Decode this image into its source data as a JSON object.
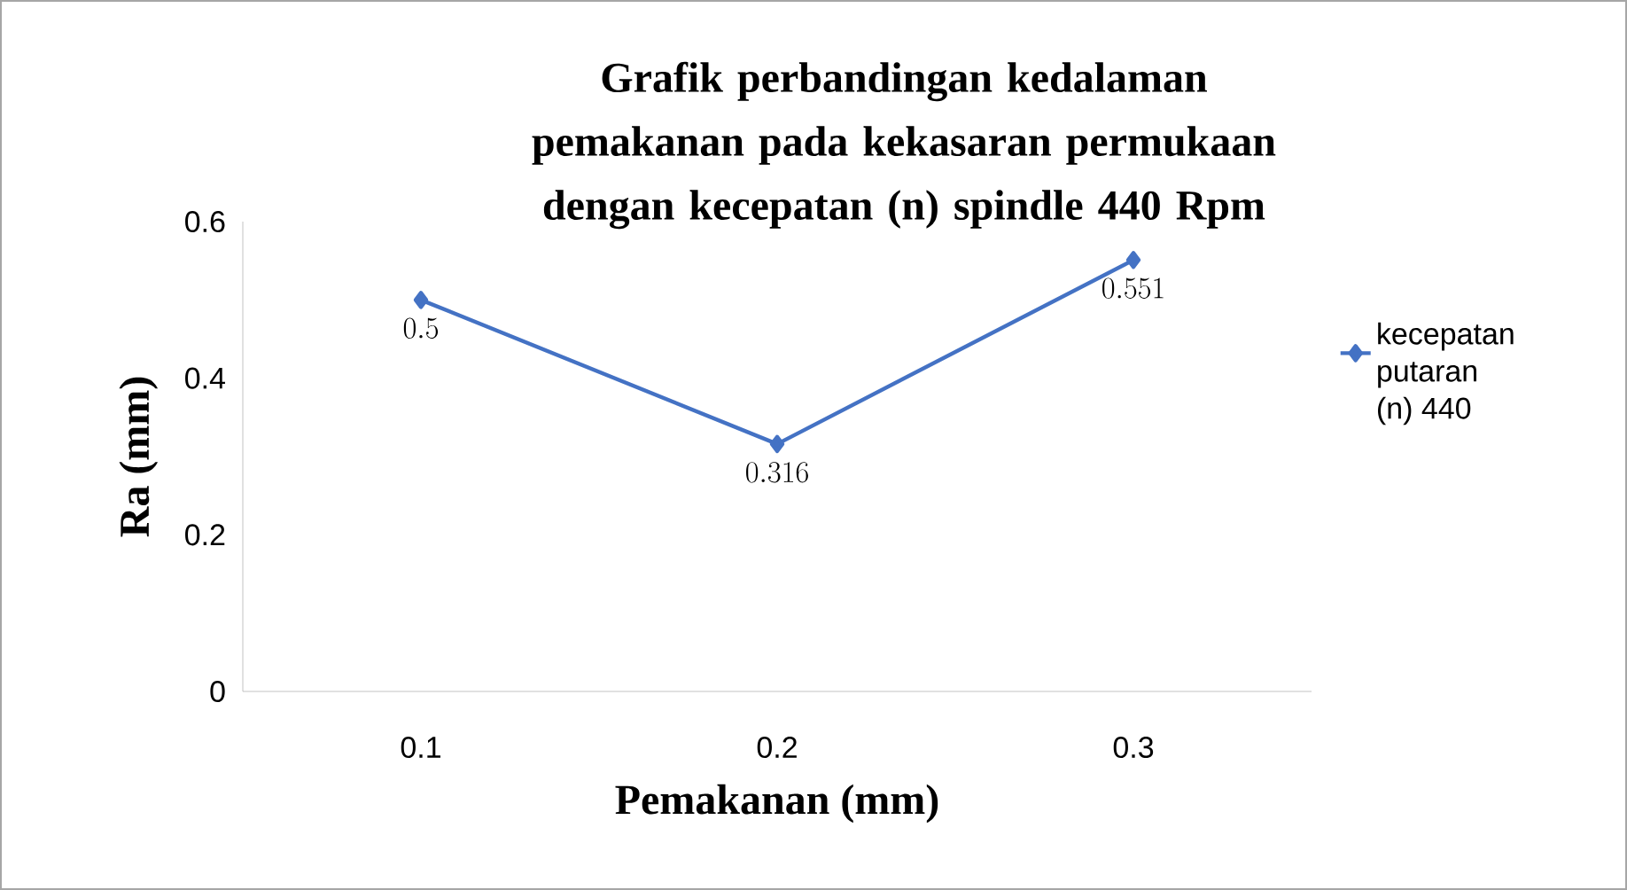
{
  "chart_data": {
    "type": "line",
    "title": "Grafik perbandingan kedalaman pemakanan pada kekasaran permukaan dengan  kecepatan (n) spindle 440 Rpm",
    "xlabel": "Pemakanan (mm)",
    "ylabel": "Ra (mm)",
    "categories": [
      "0.1",
      "0.2",
      "0.3"
    ],
    "series": [
      {
        "name": "kecepatan putaran (n) 440",
        "color": "#4472c4",
        "values": [
          0.5,
          0.316,
          0.551
        ]
      }
    ],
    "ylim": [
      0,
      0.6
    ],
    "yticks": [
      0,
      0.2,
      0.4,
      0.6
    ],
    "data_labels": true,
    "legend": "right",
    "marker": "diamond",
    "line_style": "solid"
  }
}
